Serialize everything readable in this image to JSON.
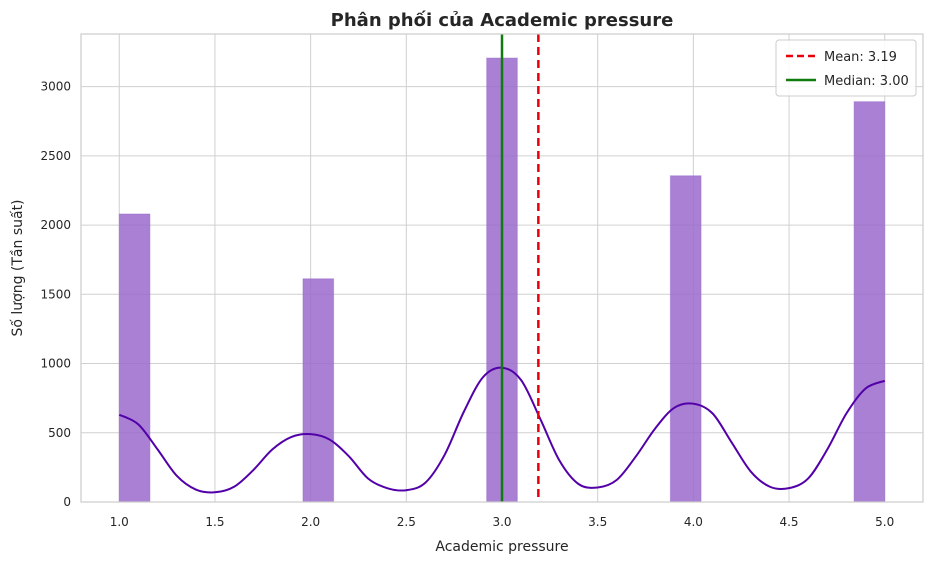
{
  "chart_data": {
    "type": "bar",
    "title": "Phân phối của Academic pressure",
    "xlabel": "Academic pressure",
    "ylabel": "Số lượng (Tần suất)",
    "xlim": [
      0.8,
      5.2
    ],
    "ylim": [
      0,
      3380
    ],
    "xticks": [
      1.0,
      1.5,
      2.0,
      2.5,
      3.0,
      3.5,
      4.0,
      4.5,
      5.0
    ],
    "xtick_labels": [
      "1.0",
      "1.5",
      "2.0",
      "2.5",
      "3.0",
      "3.5",
      "4.0",
      "4.5",
      "5.0"
    ],
    "yticks": [
      0,
      500,
      1000,
      1500,
      2000,
      2500,
      3000
    ],
    "ytick_labels": [
      "0",
      "500",
      "1000",
      "1500",
      "2000",
      "2500",
      "3000"
    ],
    "grid": true,
    "bins": [
      {
        "x0": 1.0,
        "x1": 1.16,
        "value": 2080
      },
      {
        "x0": 1.96,
        "x1": 2.12,
        "value": 1612
      },
      {
        "x0": 2.92,
        "x1": 3.08,
        "value": 3206
      },
      {
        "x0": 3.88,
        "x1": 4.04,
        "value": 2356
      },
      {
        "x0": 4.84,
        "x1": 5.0,
        "value": 2891
      }
    ],
    "bar_color": "#9A6ACB",
    "kde": {
      "color": "#5200A8",
      "x": [
        1.0,
        1.1,
        1.2,
        1.3,
        1.4,
        1.5,
        1.6,
        1.7,
        1.8,
        1.9,
        2.0,
        2.1,
        2.2,
        2.3,
        2.4,
        2.5,
        2.6,
        2.7,
        2.8,
        2.9,
        3.0,
        3.1,
        3.2,
        3.3,
        3.4,
        3.5,
        3.6,
        3.7,
        3.8,
        3.9,
        4.0,
        4.1,
        4.2,
        4.3,
        4.4,
        4.5,
        4.6,
        4.7,
        4.8,
        4.9,
        5.0
      ],
      "y": [
        630,
        560,
        380,
        190,
        90,
        70,
        110,
        230,
        380,
        470,
        490,
        450,
        330,
        170,
        100,
        85,
        140,
        340,
        650,
        900,
        970,
        880,
        600,
        300,
        130,
        105,
        160,
        330,
        530,
        680,
        710,
        640,
        430,
        220,
        110,
        100,
        170,
        380,
        640,
        820,
        875
      ]
    },
    "mean_line": {
      "value": 3.19,
      "color": "#E8000B",
      "style": "dashed"
    },
    "median_line": {
      "value": 3.0,
      "color": "#107C10",
      "style": "solid"
    },
    "legend": {
      "placement": "top-right",
      "entries": [
        "Mean: 3.19",
        "Median: 3.00"
      ]
    }
  }
}
